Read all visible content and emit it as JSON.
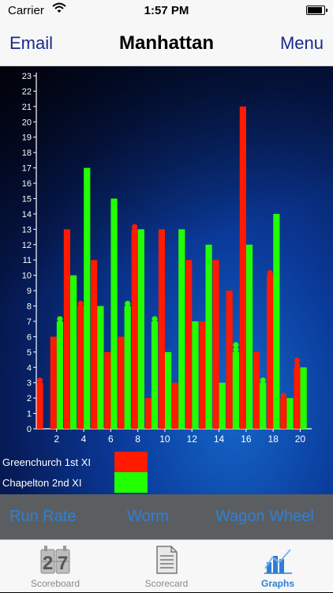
{
  "status_bar": {
    "carrier": "Carrier",
    "time": "1:57 PM",
    "battery_level": 0.95
  },
  "nav": {
    "left": "Email",
    "title": "Manhattan",
    "right": "Menu"
  },
  "chart_data": {
    "type": "bar",
    "title": "",
    "xlabel": "",
    "ylabel": "",
    "x_ticks": [
      "2",
      "4",
      "6",
      "8",
      "10",
      "12",
      "14",
      "16",
      "18",
      "20"
    ],
    "y_ticks": [
      "0",
      "1",
      "2",
      "3",
      "4",
      "5",
      "6",
      "7",
      "8",
      "9",
      "10",
      "11",
      "12",
      "13",
      "14",
      "15",
      "16",
      "17",
      "18",
      "19",
      "20",
      "21",
      "22",
      "23"
    ],
    "ylim": [
      0,
      23
    ],
    "categories": [
      1,
      2,
      3,
      4,
      5,
      6,
      7,
      8,
      9,
      10,
      11,
      12,
      13,
      14,
      15,
      16,
      17,
      18,
      19,
      20
    ],
    "series": [
      {
        "name": "Greenchurch 1st XI",
        "color": "#ff1a00",
        "values": [
          3,
          6,
          13,
          8,
          11,
          5,
          6,
          13,
          2,
          13,
          3,
          11,
          7,
          11,
          9,
          21,
          5,
          10,
          2,
          4
        ],
        "wickets": [
          1,
          0,
          0,
          1,
          0,
          0,
          0,
          1,
          0,
          0,
          0,
          0,
          0,
          0,
          0,
          0,
          0,
          1,
          1,
          2
        ]
      },
      {
        "name": "Chapelton 2nd XI",
        "color": "#22ff00",
        "values": [
          0,
          7,
          10,
          17,
          8,
          15,
          8,
          13,
          7,
          5,
          13,
          7,
          12,
          3,
          5,
          12,
          3,
          14,
          2,
          4
        ],
        "wickets": [
          0,
          1,
          0,
          0,
          0,
          0,
          1,
          0,
          1,
          0,
          0,
          0,
          0,
          0,
          2,
          0,
          1,
          0,
          0,
          0
        ]
      }
    ],
    "legend_position": "bottom-left",
    "grid": false
  },
  "buttons": {
    "run_rate": "Run Rate",
    "worm": "Worm",
    "wagon_wheel": "Wagon Wheel"
  },
  "tabs": {
    "scoreboard": {
      "label": "Scoreboard",
      "icon": "scoreboard-icon",
      "digits": "27"
    },
    "scorecard": {
      "label": "Scorecard",
      "icon": "scorecard-icon"
    },
    "graphs": {
      "label": "Graphs",
      "icon": "graphs-icon"
    }
  }
}
